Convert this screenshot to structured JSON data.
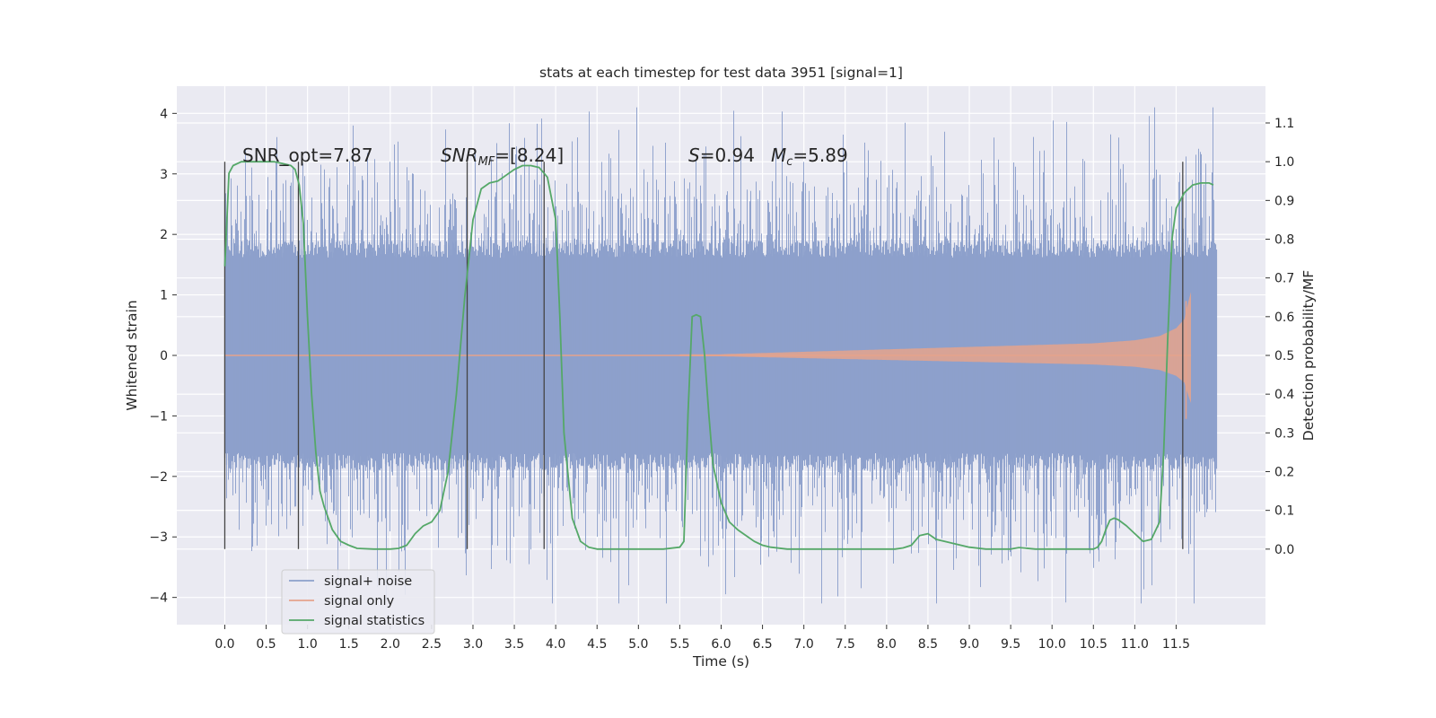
{
  "chart_data": {
    "type": "line",
    "title": "stats at each timestep for test data 3951 [signal=1]",
    "xlabel": "Time (s)",
    "ylabel": "Whitened strain",
    "y2label": "Detection probability/MF",
    "xlim": [
      -0.58,
      12.58
    ],
    "ylim": [
      -4.45,
      4.45
    ],
    "y2lim": [
      -0.195,
      1.195
    ],
    "x_ticks": [
      "0.0",
      "0.5",
      "1.0",
      "1.5",
      "2.0",
      "2.5",
      "3.0",
      "3.5",
      "4.0",
      "4.5",
      "5.0",
      "5.5",
      "6.0",
      "6.5",
      "7.0",
      "7.5",
      "8.0",
      "8.5",
      "9.0",
      "9.5",
      "10.0",
      "10.5",
      "11.0",
      "11.5"
    ],
    "y_ticks": [
      "−4",
      "−3",
      "−2",
      "−1",
      "0",
      "1",
      "2",
      "3",
      "4"
    ],
    "y2_ticks": [
      "0.0",
      "0.1",
      "0.2",
      "0.3",
      "0.4",
      "0.5",
      "0.6",
      "0.7",
      "0.8",
      "0.9",
      "1.0",
      "1.1"
    ],
    "grid": true,
    "legend_position": "lower-left",
    "annotations": {
      "snr_opt": "SNR_opt=7.87",
      "snr_mf_main": "SNR",
      "snr_mf_sub": "MF",
      "snr_mf_value": "=[8.24]",
      "s_main": "S",
      "s_value": "=0.94",
      "mc_main": "M",
      "mc_sub": "c",
      "mc_value": "=5.89"
    },
    "series": [
      {
        "name": "signal+ noise",
        "color": "#8da0cb",
        "axis": "left",
        "x_range": [
          0.0,
          11.99
        ],
        "core_band": [
          -1.9,
          1.9
        ],
        "peak_range": [
          -4.1,
          4.1
        ]
      },
      {
        "name": "signal only",
        "color": "#e5a38c",
        "axis": "left",
        "x_range": [
          0.0,
          11.68
        ],
        "envelope": {
          "x": [
            0,
            6.0,
            8.0,
            9.5,
            10.5,
            11.0,
            11.3,
            11.5,
            11.6,
            11.65,
            11.68
          ],
          "amp": [
            0,
            0.02,
            0.1,
            0.16,
            0.2,
            0.25,
            0.32,
            0.45,
            0.6,
            0.9,
            1.05
          ]
        }
      },
      {
        "name": "signal statistics",
        "color": "#55a868",
        "axis": "right",
        "x": [
          0.0,
          0.05,
          0.1,
          0.2,
          0.3,
          0.4,
          0.5,
          0.6,
          0.7,
          0.8,
          0.85,
          0.9,
          0.95,
          1.0,
          1.05,
          1.1,
          1.15,
          1.2,
          1.3,
          1.4,
          1.5,
          1.6,
          1.8,
          2.0,
          2.1,
          2.2,
          2.3,
          2.4,
          2.5,
          2.6,
          2.7,
          2.8,
          2.9,
          3.0,
          3.1,
          3.2,
          3.3,
          3.4,
          3.5,
          3.6,
          3.7,
          3.8,
          3.9,
          4.0,
          4.05,
          4.1,
          4.2,
          4.3,
          4.4,
          4.5,
          4.7,
          5.0,
          5.3,
          5.5,
          5.55,
          5.6,
          5.65,
          5.7,
          5.75,
          5.8,
          5.85,
          5.9,
          6.0,
          6.1,
          6.2,
          6.3,
          6.4,
          6.5,
          6.6,
          6.8,
          7.0,
          7.5,
          8.0,
          8.1,
          8.2,
          8.3,
          8.4,
          8.5,
          8.6,
          8.8,
          9.0,
          9.2,
          9.4,
          9.5,
          9.6,
          9.8,
          10.0,
          10.2,
          10.4,
          10.5,
          10.55,
          10.6,
          10.65,
          10.7,
          10.75,
          10.8,
          10.9,
          11.0,
          11.1,
          11.2,
          11.3,
          11.35,
          11.4,
          11.45,
          11.5,
          11.6,
          11.7,
          11.8,
          11.9,
          11.95
        ],
        "y": [
          0.73,
          0.97,
          0.99,
          1.0,
          1.0,
          1.0,
          1.0,
          1.0,
          0.995,
          0.99,
          0.98,
          0.94,
          0.84,
          0.6,
          0.4,
          0.25,
          0.15,
          0.11,
          0.05,
          0.02,
          0.01,
          0.002,
          0.0,
          0.0,
          0.002,
          0.01,
          0.04,
          0.06,
          0.07,
          0.1,
          0.2,
          0.4,
          0.65,
          0.85,
          0.93,
          0.945,
          0.95,
          0.965,
          0.98,
          0.99,
          0.99,
          0.985,
          0.96,
          0.85,
          0.6,
          0.3,
          0.08,
          0.02,
          0.005,
          0.0,
          0.0,
          0.0,
          0.0,
          0.005,
          0.02,
          0.35,
          0.6,
          0.605,
          0.6,
          0.5,
          0.35,
          0.22,
          0.12,
          0.07,
          0.05,
          0.035,
          0.02,
          0.01,
          0.005,
          0.0,
          0.0,
          0.0,
          0.0,
          0.0,
          0.003,
          0.01,
          0.035,
          0.04,
          0.025,
          0.015,
          0.005,
          0.0,
          0.0,
          0.0,
          0.004,
          0.0,
          0.0,
          0.0,
          0.0,
          0.0,
          0.005,
          0.02,
          0.05,
          0.075,
          0.08,
          0.076,
          0.06,
          0.04,
          0.02,
          0.025,
          0.07,
          0.25,
          0.55,
          0.8,
          0.88,
          0.92,
          0.94,
          0.945,
          0.945,
          0.94
        ]
      }
    ],
    "vertical_markers_x": [
      0.0,
      0.89,
      2.93,
      3.86,
      11.58
    ]
  }
}
